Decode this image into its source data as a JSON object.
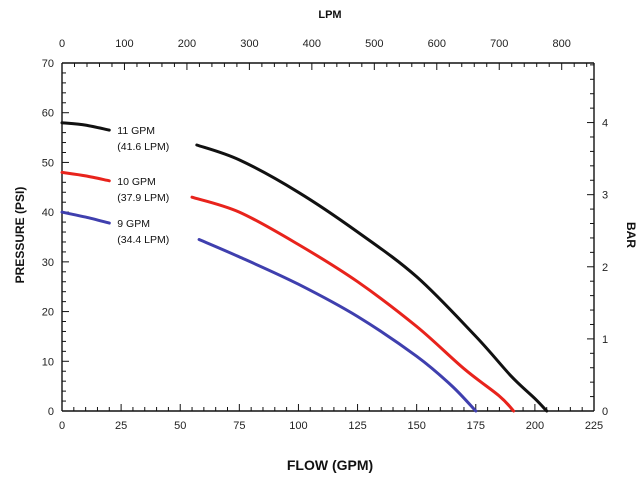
{
  "chart_data": {
    "type": "line",
    "title": "",
    "xlabel": "FLOW (GPM)",
    "ylabel": "PRESSURE (PSI)",
    "x2label": "LPM",
    "y2label": "BAR",
    "xlim": [
      0,
      225
    ],
    "ylim": [
      0,
      70
    ],
    "x2lim": [
      0,
      851.7
    ],
    "y2lim": [
      0,
      4.826
    ],
    "xticks": [
      0,
      25,
      50,
      75,
      100,
      125,
      150,
      175,
      200,
      225
    ],
    "yticks": [
      0,
      10,
      20,
      30,
      40,
      50,
      60,
      70
    ],
    "x2ticks": [
      0,
      100,
      200,
      300,
      400,
      500,
      600,
      700,
      800
    ],
    "y2ticks": [
      0,
      1,
      2,
      3,
      4
    ],
    "grid": false,
    "series": [
      {
        "name": "11 GPM (41.6 LPM)",
        "label_line1": "11 GPM",
        "label_line2": "(41.6 LPM)",
        "color": "#111111",
        "x": [
          0,
          10,
          20,
          57,
          75,
          100,
          125,
          150,
          175,
          190,
          200,
          205
        ],
        "y": [
          58,
          57.5,
          56.5,
          53.5,
          50.5,
          44,
          36,
          27,
          15,
          7,
          2.5,
          0
        ]
      },
      {
        "name": "10 GPM (37.9 LPM)",
        "label_line1": "10 GPM",
        "label_line2": "(37.9 LPM)",
        "color": "#e8231c",
        "x": [
          0,
          10,
          20,
          55,
          75,
          100,
          125,
          150,
          170,
          185,
          191
        ],
        "y": [
          48,
          47.3,
          46.3,
          43,
          40,
          33.5,
          26,
          17,
          8.5,
          3,
          0
        ]
      },
      {
        "name": "9 GPM (34.4 LPM)",
        "label_line1": "9 GPM",
        "label_line2": "(34.4 LPM)",
        "color": "#3f3fae",
        "x": [
          0,
          10,
          20,
          58,
          75,
          100,
          125,
          150,
          165,
          175
        ],
        "y": [
          40,
          39,
          37.8,
          34.5,
          31,
          25.5,
          19,
          11,
          5,
          0
        ]
      }
    ]
  }
}
